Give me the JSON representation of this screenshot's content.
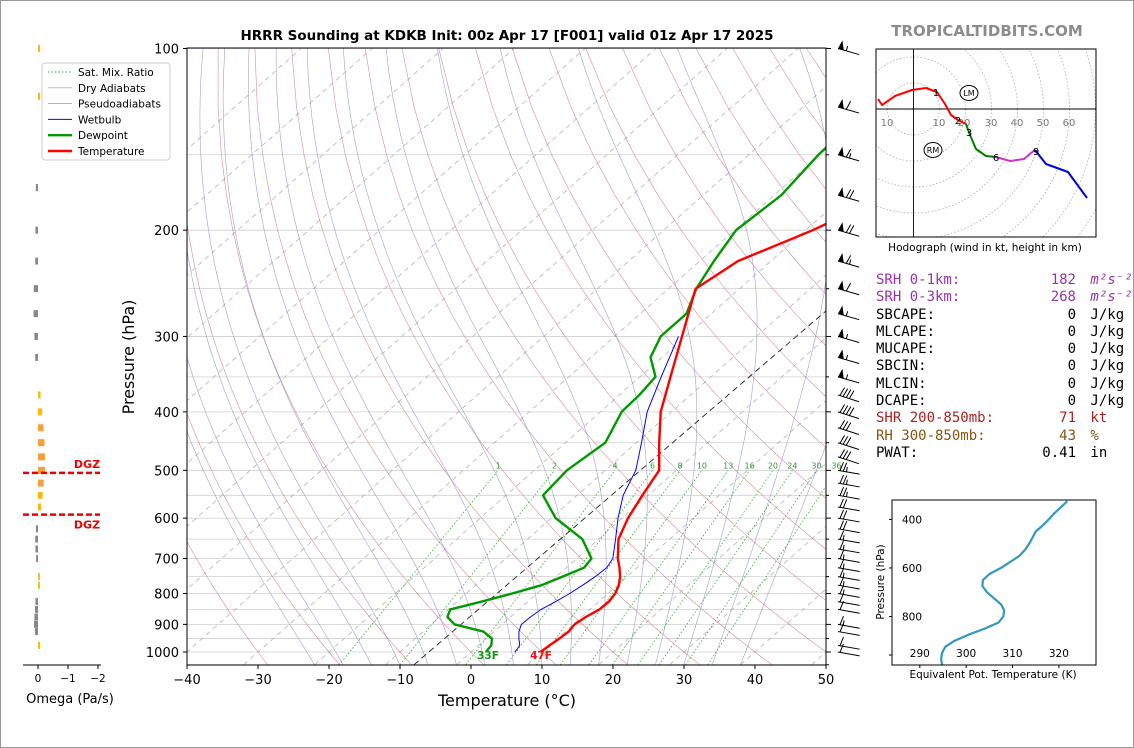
{
  "header": {
    "title": "HRRR Sounding at KDKB Init: 00z Apr 17 [F001] valid 01z Apr 17 2025",
    "brand": "TROPICALTIDBITS.COM"
  },
  "chart_data": [
    {
      "type": "skewt",
      "xlabel": "Temperature (°C)",
      "ylabel": "Pressure (hPa)",
      "xlim": [
        -40,
        50
      ],
      "ylim": [
        1050,
        100
      ],
      "x_ticks": [
        "−40",
        "−30",
        "−20",
        "−10",
        "0",
        "10",
        "20",
        "30",
        "40",
        "50"
      ],
      "y_ticks": [
        "100",
        "200",
        "300",
        "400",
        "500",
        "600",
        "700",
        "800",
        "900",
        "1000"
      ],
      "legend": [
        "Sat. Mix. Ratio",
        "Dry Adiabats",
        "Pseudoadiabats",
        "Wetbulb",
        "Dewpoint",
        "Temperature"
      ],
      "legend_position": "top-left",
      "mixing_ratio_labels": [
        "1",
        "2",
        "4",
        "6",
        "8",
        "10",
        "13",
        "16",
        "20",
        "24",
        "30",
        "36"
      ],
      "surface_dewpoint_label": "33F",
      "surface_temp_label": "47F",
      "temperature": {
        "p": [
          1000,
          975,
          950,
          925,
          900,
          875,
          850,
          825,
          800,
          775,
          750,
          725,
          700,
          650,
          600,
          550,
          500,
          450,
          400,
          350,
          300,
          250,
          225,
          200,
          175,
          150,
          125,
          100
        ],
        "t": [
          9.8,
          10.0,
          10.3,
          10.5,
          10.2,
          10.6,
          11.3,
          11.4,
          11.0,
          10.2,
          9.0,
          7.5,
          5.8,
          2.8,
          0.8,
          -0.8,
          -2.4,
          -6.8,
          -11.5,
          -15.7,
          -20.5,
          -26.2,
          -24.6,
          -19.0,
          -14.2,
          -8.5,
          -1.7,
          3.7
        ]
      },
      "dewpoint": {
        "p": [
          1000,
          975,
          950,
          925,
          900,
          875,
          850,
          825,
          800,
          775,
          750,
          725,
          700,
          650,
          600,
          550,
          500,
          450,
          400,
          375,
          350,
          325,
          300,
          275,
          250,
          225,
          200,
          175,
          150,
          125,
          100
        ],
        "t": [
          2.1,
          1.8,
          0.8,
          -1.5,
          -6.7,
          -8.9,
          -9.7,
          -6.5,
          -3.5,
          -0.7,
          0.9,
          2.5,
          2.1,
          -2.3,
          -9.4,
          -14.8,
          -15.4,
          -14.4,
          -17.0,
          -17.2,
          -17.8,
          -21.6,
          -23.5,
          -23.5,
          -26.1,
          -28.0,
          -29.8,
          -29.0,
          -30.2,
          -30.7,
          -27.1
        ]
      },
      "wetbulb": {
        "p": [
          1000,
          975,
          950,
          925,
          900,
          875,
          850,
          825,
          800,
          775,
          750,
          725,
          700,
          650,
          600,
          550,
          500,
          450,
          400,
          350,
          300
        ],
        "t": [
          6.2,
          5.8,
          4.6,
          3.5,
          2.7,
          2.8,
          3.1,
          3.9,
          4.6,
          5.1,
          5.5,
          5.7,
          5.1,
          2.4,
          -0.6,
          -3.5,
          -5.7,
          -9.3,
          -13.4,
          -17.0,
          -21.0
        ]
      },
      "omega": {
        "xlabel": "Omega (Pa/s)",
        "x_ticks": [
          "0",
          "−1",
          "−2"
        ],
        "dgz_label": "DGZ",
        "dgz_pressures": [
          505,
          592
        ],
        "p": [
          100,
          120,
          170,
          200,
          225,
          250,
          275,
          300,
          325,
          375,
          400,
          425,
          450,
          475,
          500,
          525,
          550,
          575,
          625,
          650,
          675,
          700,
          750,
          775,
          825,
          850,
          875,
          900,
          925,
          975
        ],
        "w": [
          -0.03,
          -0.03,
          0.03,
          0.05,
          0.06,
          0.13,
          0.14,
          0.1,
          0.06,
          -0.05,
          -0.13,
          -0.19,
          -0.24,
          -0.26,
          -0.27,
          -0.2,
          -0.15,
          -0.07,
          0.03,
          0.06,
          0.05,
          0.02,
          -0.02,
          -0.02,
          0.05,
          0.07,
          0.1,
          0.12,
          0.07,
          -0.03
        ]
      },
      "wind_barbs": {
        "p": [
          100,
          125,
          150,
          175,
          200,
          225,
          250,
          275,
          300,
          325,
          350,
          375,
          400,
          425,
          450,
          475,
          500,
          525,
          550,
          575,
          600,
          625,
          650,
          675,
          700,
          725,
          750,
          775,
          800,
          825,
          850,
          900,
          925,
          975,
          1000
        ],
        "kt": [
          55,
          60,
          65,
          70,
          70,
          65,
          60,
          55,
          55,
          55,
          55,
          40,
          40,
          30,
          30,
          30,
          25,
          25,
          25,
          20,
          20,
          20,
          15,
          15,
          15,
          15,
          15,
          15,
          15,
          10,
          10,
          15,
          10,
          10,
          10
        ]
      }
    },
    {
      "type": "line",
      "name": "hodograph",
      "xlabel": "Hodograph (wind in kt, height in km)",
      "ring_labels": [
        "10",
        "10",
        "20",
        "30",
        "40",
        "50",
        "60"
      ],
      "height_labels": [
        "1",
        "2",
        "3",
        "6",
        "9"
      ],
      "markers": [
        "LM",
        "RM"
      ],
      "colors_by_layer": [
        "#ff0000",
        "#008000",
        "#cc33cc",
        "#0000dd"
      ]
    },
    {
      "type": "line",
      "name": "theta-e",
      "xlabel": "Equivalent Pot. Temperature (K)",
      "ylabel": "Pressure (hPa)",
      "x_ticks": [
        "290",
        "300",
        "310",
        "320"
      ],
      "y_ticks": [
        "400",
        "600",
        "800"
      ],
      "xlim": [
        284,
        328
      ],
      "ylim": [
        1000,
        320
      ],
      "p": [
        1000,
        975,
        950,
        925,
        900,
        875,
        850,
        825,
        800,
        775,
        750,
        725,
        700,
        675,
        650,
        625,
        600,
        575,
        550,
        525,
        500,
        475,
        450,
        425,
        400,
        375,
        350,
        325
      ],
      "theta_e": [
        294.8,
        294.6,
        294.8,
        295.5,
        297.5,
        300.5,
        304,
        307,
        308,
        308.2,
        307.5,
        306,
        304.5,
        303.5,
        303.6,
        305,
        307.5,
        309.5,
        311.5,
        312.7,
        313.6,
        314.3,
        315,
        316.5,
        317.8,
        319,
        320.4,
        321.8
      ]
    }
  ],
  "stats": [
    {
      "label": "SRH 0-1km:",
      "value": "182",
      "unit": "m²s⁻²",
      "color": "#9933aa"
    },
    {
      "label": "SRH 0-3km:",
      "value": "268",
      "unit": "m²s⁻²",
      "color": "#9933aa"
    },
    {
      "label": "SBCAPE:",
      "value": "0",
      "unit": "J/kg",
      "color": "#000000"
    },
    {
      "label": "MLCAPE:",
      "value": "0",
      "unit": "J/kg",
      "color": "#000000"
    },
    {
      "label": "MUCAPE:",
      "value": "0",
      "unit": "J/kg",
      "color": "#000000"
    },
    {
      "label": "SBCIN:",
      "value": "0",
      "unit": "J/kg",
      "color": "#000000"
    },
    {
      "label": "MLCIN:",
      "value": "0",
      "unit": "J/kg",
      "color": "#000000"
    },
    {
      "label": "DCAPE:",
      "value": "0",
      "unit": "J/kg",
      "color": "#000000"
    },
    {
      "label": "SHR 200-850mb:",
      "value": "71",
      "unit": "kt",
      "color": "#aa2222"
    },
    {
      "label": "RH 300-850mb:",
      "value": "43",
      "unit": "%",
      "color": "#885511"
    },
    {
      "label": "PWAT:",
      "value": "0.41",
      "unit": "in",
      "color": "#000000"
    }
  ],
  "colors": {
    "temperature": "#ff0000",
    "dewpoint": "#009900",
    "wetbulb": "#0000ff",
    "dry_adiabat": "#cc6677",
    "moist_adiabat": "#8888cc",
    "mixing_ratio": "#33aa33",
    "omega_up": "#fdb913",
    "omega_peak": "#f4a03c",
    "omega_down": "#888888",
    "theta_e": "#3399bb"
  }
}
